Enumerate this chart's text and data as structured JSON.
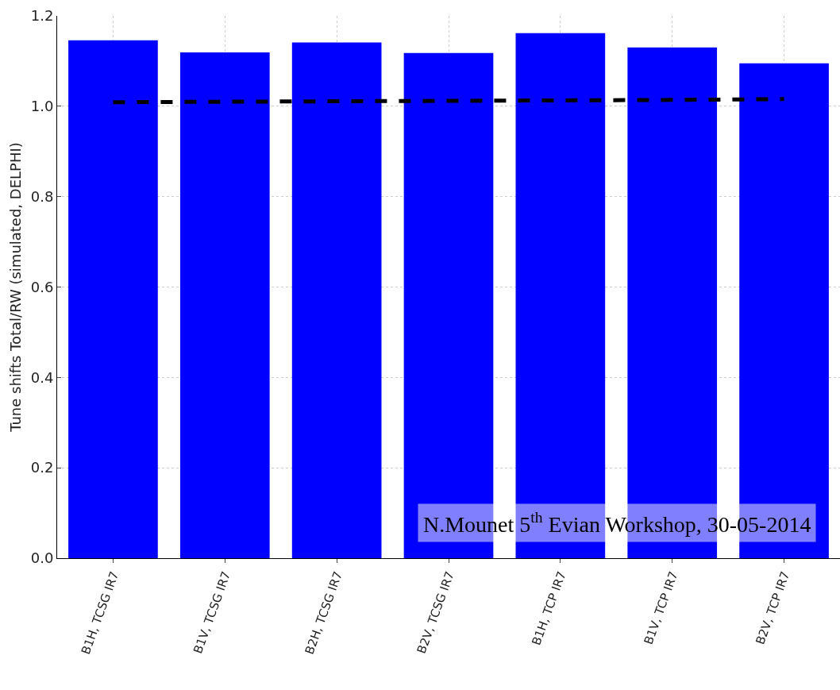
{
  "chart_data": {
    "type": "bar",
    "ylabel": "Tune shifts Total/RW (simulated, DELPHI)",
    "categories": [
      "B1H, TCSG IR7",
      "B1V, TCSG IR7",
      "B2H, TCSG IR7",
      "B2V, TCSG IR7",
      "B1H, TCP IR7",
      "B1V, TCP IR7",
      "B2V, TCP IR7"
    ],
    "series": [
      {
        "color": "#0000ff",
        "values": [
          1.146,
          1.119,
          1.141,
          1.118,
          1.162,
          1.13,
          1.095
        ]
      },
      {
        "type": "line",
        "color": "#000000",
        "line_style": "dashed",
        "marker": "none",
        "values": [
          1.009,
          1.01,
          1.011,
          1.012,
          1.013,
          1.014,
          1.016
        ]
      }
    ],
    "ylim": [
      0,
      1.2
    ],
    "yticks": [
      {
        "value": 0,
        "label": "0.0"
      },
      {
        "value": 0.2,
        "label": "0.2"
      },
      {
        "value": 0.4,
        "label": "0.4"
      },
      {
        "value": 0.6,
        "label": "0.6"
      },
      {
        "value": 0.8,
        "label": "0.8"
      },
      {
        "value": 1,
        "label": "1.0"
      },
      {
        "value": 1.2,
        "label": "1.2"
      }
    ],
    "grid": true,
    "annotations": [
      "N.Mounet 5$^{th}$ Evian Workshop, 30-05-2014"
    ]
  }
}
